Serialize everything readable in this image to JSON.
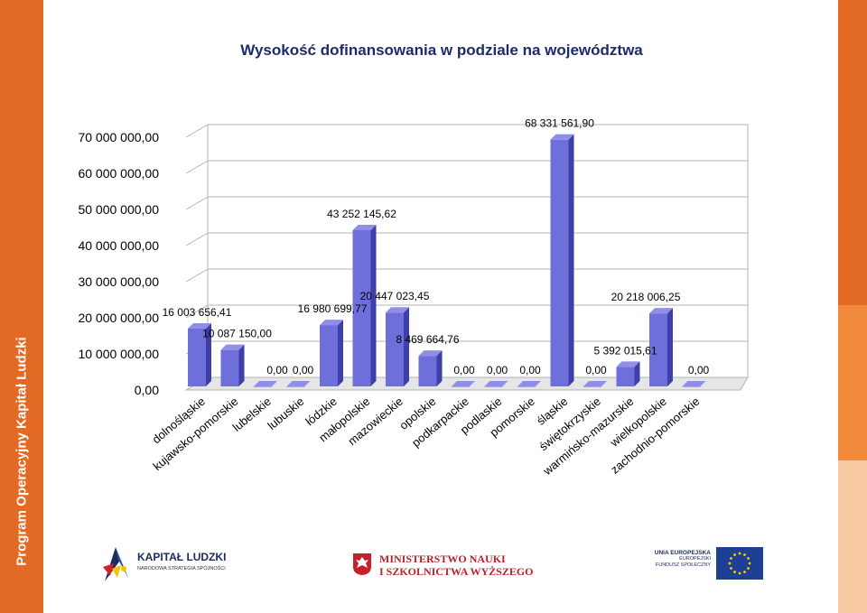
{
  "sidebar": {
    "vertical_text": "Program Operacyjny Kapitał Ludzki"
  },
  "chart_data": {
    "type": "bar",
    "title": "Wysokość dofinansowania w podziale na województwa",
    "xlabel": "",
    "ylabel": "",
    "ylim": [
      0,
      70000000
    ],
    "yticks": [
      0,
      10000000,
      20000000,
      30000000,
      40000000,
      50000000,
      60000000,
      70000000
    ],
    "ytick_labels": [
      "0,00",
      "10 000 000,00",
      "20 000 000,00",
      "30 000 000,00",
      "40 000 000,00",
      "50 000 000,00",
      "60 000 000,00",
      "70 000 000,00"
    ],
    "grid": true,
    "bar_color": "#6f6fdb",
    "categories": [
      "dolnośląskie",
      "kujawsko-pomorskie",
      "lubelskie",
      "lubuskie",
      "łódzkie",
      "małopolskie",
      "mazowieckie",
      "opolskie",
      "podkarpackie",
      "podlaskie",
      "pomorskie",
      "śląskie",
      "świętokrzyskie",
      "warmińsko-mazurskie",
      "wielkopolskie",
      "zachodnio-pomorskie"
    ],
    "values": [
      16003656.41,
      10087150.0,
      0,
      0,
      16980699.77,
      43252145.62,
      20447023.45,
      8469664.76,
      0,
      0,
      0,
      68331561.9,
      0,
      5392015.61,
      20218006.25,
      0
    ],
    "value_labels": [
      "16 003 656,41",
      "10 087 150,00",
      "0,00",
      "0,00",
      "16 980 699,77",
      "43 252 145,62",
      "20 447 023,45",
      "8 469 664,76",
      "0,00",
      "0,00",
      "0,00",
      "68 331 561,90",
      "0,00",
      "5 392 015,61",
      "20 218 006,25",
      "0,00"
    ]
  },
  "logos": {
    "kapital_ludzki": {
      "title": "KAPITAŁ LUDZKI",
      "subtitle": "NARODOWA STRATEGIA SPÓJNOŚCI"
    },
    "ministerstwo": {
      "line1": "MINISTERSTWO NAUKI",
      "line2": "I SZKOLNICTWA WYŻSZEGO"
    },
    "unia": {
      "line1": "UNIA EUROPEJSKA",
      "line2": "EUROPEJSKI",
      "line3": "FUNDUSZ SPOŁECZNY"
    }
  }
}
